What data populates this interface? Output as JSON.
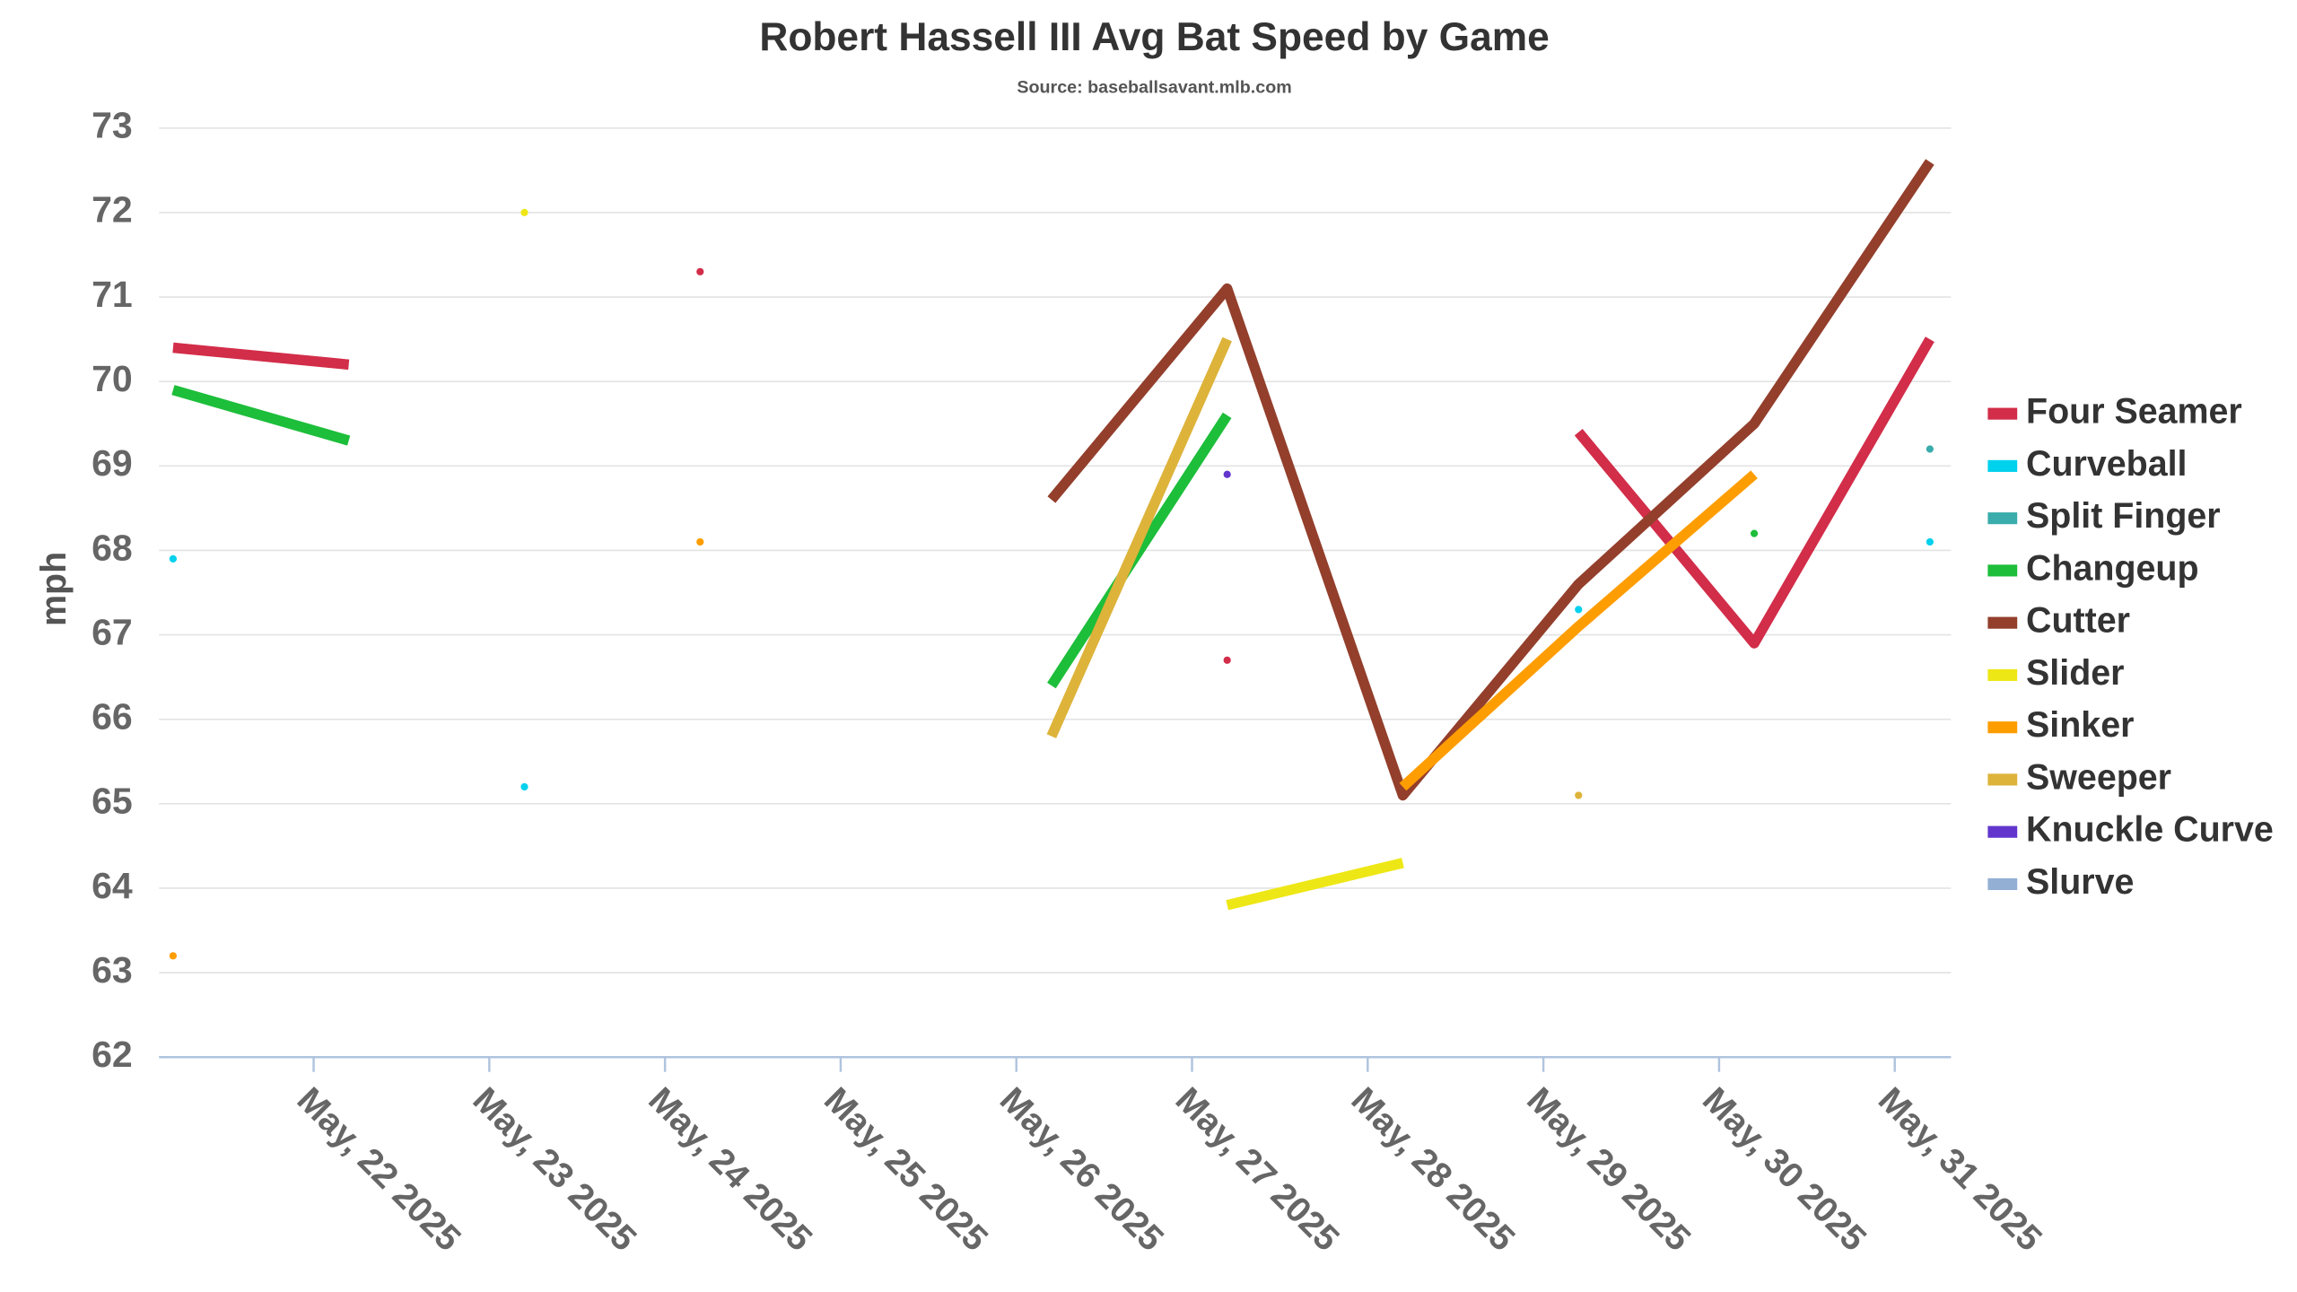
{
  "chart_data": {
    "type": "line",
    "title": "Robert Hassell III Avg Bat Speed by Game",
    "subtitle": "Source: baseballsavant.mlb.com",
    "y_label": "mph",
    "x": [
      21.2,
      22.2,
      23.2,
      24.2,
      26.2,
      27.2,
      28.2,
      29.2,
      30.2,
      31.2
    ],
    "xlim": [
      21.12,
      31.32
    ],
    "xticks": [
      {
        "value": 22,
        "label": "May, 22 2025"
      },
      {
        "value": 23,
        "label": "May, 23 2025"
      },
      {
        "value": 24,
        "label": "May, 24 2025"
      },
      {
        "value": 25,
        "label": "May, 25 2025"
      },
      {
        "value": 26,
        "label": "May, 26 2025"
      },
      {
        "value": 27,
        "label": "May, 27 2025"
      },
      {
        "value": 28,
        "label": "May, 28 2025"
      },
      {
        "value": 29,
        "label": "May, 29 2025"
      },
      {
        "value": 30,
        "label": "May, 30 2025"
      },
      {
        "value": 31,
        "label": "May, 31 2025"
      }
    ],
    "ylim": [
      62,
      73
    ],
    "yticks": [
      62,
      63,
      64,
      65,
      66,
      67,
      68,
      69,
      70,
      71,
      72,
      73
    ],
    "grid": true,
    "legend": "right",
    "series": [
      {
        "name": "Four Seamer",
        "color": "#d22d49",
        "values": [
          70.4,
          70.2,
          null,
          71.3,
          null,
          66.7,
          null,
          69.4,
          66.9,
          70.5
        ]
      },
      {
        "name": "Curveball",
        "color": "#00d1ed",
        "values": [
          67.9,
          null,
          65.2,
          null,
          null,
          null,
          null,
          67.3,
          null,
          68.1
        ]
      },
      {
        "name": "Split Finger",
        "color": "#3bacac",
        "values": [
          null,
          null,
          null,
          null,
          null,
          null,
          null,
          null,
          null,
          69.2
        ]
      },
      {
        "name": "Changeup",
        "color": "#1dbe3a",
        "values": [
          69.9,
          69.3,
          null,
          null,
          66.4,
          69.6,
          null,
          null,
          68.2,
          null
        ]
      },
      {
        "name": "Cutter",
        "color": "#933f2c",
        "values": [
          null,
          null,
          null,
          null,
          68.6,
          71.1,
          65.1,
          67.6,
          69.5,
          72.6
        ]
      },
      {
        "name": "Slider",
        "color": "#eee716",
        "values": [
          null,
          null,
          72.0,
          null,
          null,
          63.8,
          64.3,
          null,
          null,
          null
        ]
      },
      {
        "name": "Sinker",
        "color": "#fe9d00",
        "values": [
          63.2,
          null,
          null,
          68.1,
          null,
          null,
          65.2,
          67.1,
          68.9,
          null
        ]
      },
      {
        "name": "Sweeper",
        "color": "#ddb33a",
        "values": [
          null,
          null,
          null,
          null,
          65.8,
          70.5,
          null,
          65.1,
          null,
          null
        ]
      },
      {
        "name": "Knuckle Curve",
        "color": "#6236cd",
        "values": [
          null,
          null,
          null,
          null,
          null,
          68.9,
          null,
          null,
          null,
          null
        ]
      },
      {
        "name": "Slurve",
        "color": "#93afd4",
        "values": [
          null,
          null,
          null,
          null,
          null,
          null,
          null,
          null,
          null,
          null
        ]
      }
    ]
  }
}
